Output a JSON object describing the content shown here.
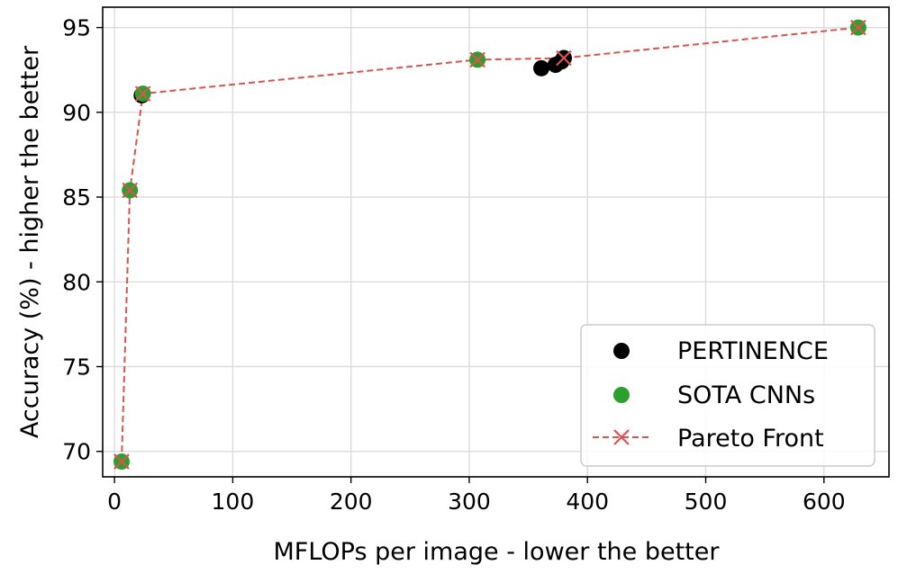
{
  "chart_data": {
    "type": "scatter",
    "xlabel": "MFLOPs per image - lower the better",
    "ylabel": "Accuracy (%) - higher the better",
    "xlim": [
      -10,
      655
    ],
    "ylim": [
      68.5,
      96.2
    ],
    "xticks": [
      0,
      100,
      200,
      300,
      400,
      500,
      600
    ],
    "yticks": [
      70,
      75,
      80,
      85,
      90,
      95
    ],
    "grid": true,
    "legend_position": "lower-right",
    "series": [
      {
        "name": "PERTINENCE",
        "kind": "points",
        "color": "#000000",
        "x": [
          23,
          361,
          373,
          378,
          380
        ],
        "y": [
          91.0,
          92.6,
          92.8,
          93.0,
          93.2
        ]
      },
      {
        "name": "SOTA CNNs",
        "kind": "points",
        "color": "#2ca02c",
        "x": [
          6,
          13,
          24,
          307,
          629
        ],
        "y": [
          69.4,
          85.4,
          91.1,
          93.1,
          95.0
        ]
      },
      {
        "name": "Pareto Front",
        "kind": "line",
        "color": "#d9534f",
        "x": [
          6,
          13,
          24,
          307,
          380,
          629
        ],
        "y": [
          69.4,
          85.4,
          91.1,
          93.1,
          93.2,
          95.0
        ]
      }
    ]
  }
}
